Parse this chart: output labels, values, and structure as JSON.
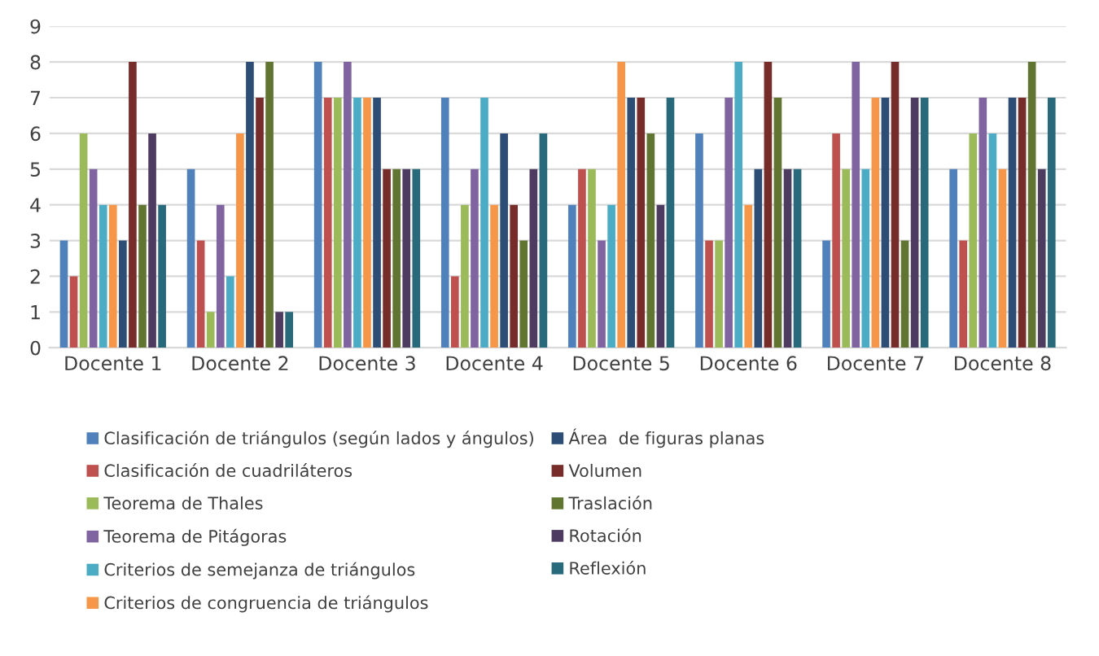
{
  "chart_data": {
    "type": "bar",
    "categories": [
      "Docente 1",
      "Docente 2",
      "Docente 3",
      "Docente 4",
      "Docente 5",
      "Docente 6",
      "Docente 7",
      "Docente 8"
    ],
    "series": [
      {
        "name": "Clasificación de triángulos (según lados y ángulos)",
        "color": "#4f81bd",
        "values": [
          3,
          5,
          8,
          7,
          4,
          6,
          3,
          5
        ]
      },
      {
        "name": "Clasificación de cuadriláteros",
        "color": "#c0504d",
        "values": [
          2,
          3,
          7,
          2,
          5,
          3,
          6,
          3
        ]
      },
      {
        "name": "Teorema de Thales",
        "color": "#9bbb59",
        "values": [
          6,
          1,
          7,
          4,
          5,
          3,
          5,
          6
        ]
      },
      {
        "name": "Teorema de Pitágoras",
        "color": "#8064a2",
        "values": [
          5,
          4,
          8,
          5,
          3,
          7,
          8,
          7
        ]
      },
      {
        "name": "Criterios de semejanza de triángulos",
        "color": "#4bacc6",
        "values": [
          4,
          2,
          7,
          7,
          4,
          8,
          5,
          6
        ]
      },
      {
        "name": "Criterios de congruencia de triángulos",
        "color": "#f79646",
        "values": [
          4,
          6,
          7,
          4,
          8,
          4,
          7,
          5
        ]
      },
      {
        "name": "Área  de figuras planas",
        "color": "#2c4d75",
        "values": [
          3,
          8,
          7,
          6,
          7,
          5,
          7,
          7
        ]
      },
      {
        "name": "Volumen",
        "color": "#772c2a",
        "values": [
          8,
          7,
          5,
          4,
          7,
          8,
          8,
          7
        ]
      },
      {
        "name": "Traslación",
        "color": "#5f7530",
        "values": [
          4,
          8,
          5,
          3,
          6,
          7,
          3,
          8
        ]
      },
      {
        "name": "Rotación",
        "color": "#4d3b62",
        "values": [
          6,
          1,
          5,
          5,
          4,
          5,
          7,
          5
        ]
      },
      {
        "name": "Reflexión",
        "color": "#276a7c",
        "values": [
          4,
          1,
          5,
          6,
          7,
          5,
          7,
          7
        ]
      }
    ],
    "ylim": [
      0,
      9
    ],
    "yticks": [
      0,
      1,
      2,
      3,
      4,
      5,
      6,
      7,
      8,
      9
    ],
    "grid": "y",
    "legend": "bottom"
  }
}
